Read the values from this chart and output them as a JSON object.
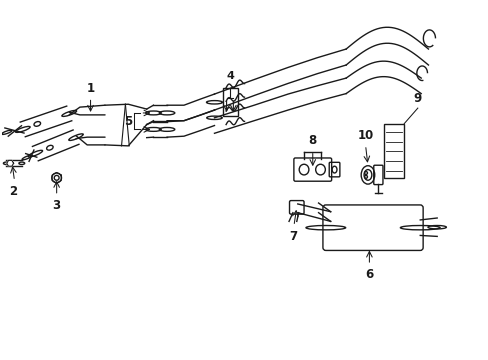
{
  "background_color": "#ffffff",
  "line_color": "#1a1a1a",
  "line_width": 1.0,
  "figsize": [
    4.89,
    3.6
  ],
  "dpi": 100,
  "xlim": [
    0,
    10
  ],
  "ylim": [
    0,
    7.35
  ]
}
